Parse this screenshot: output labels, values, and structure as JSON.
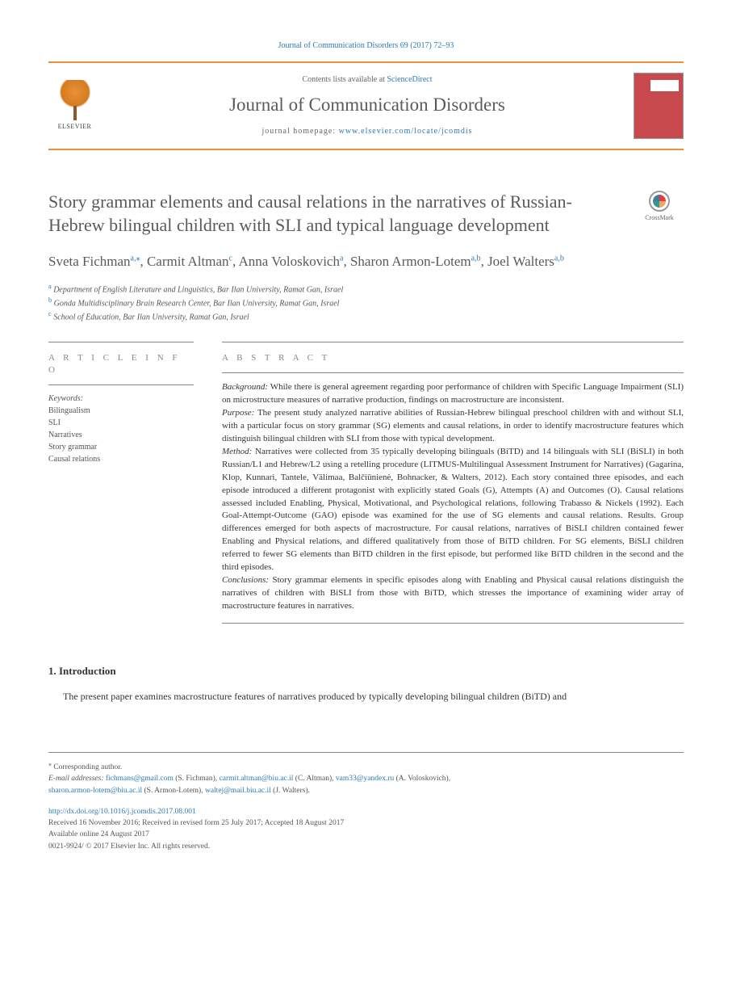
{
  "header": {
    "citation": "Journal of Communication Disorders 69 (2017) 72–93",
    "contents_prefix": "Contents lists available at ",
    "contents_link": "ScienceDirect",
    "journal_name": "Journal of Communication Disorders",
    "homepage_prefix": "journal homepage: ",
    "homepage_url": "www.elsevier.com/locate/jcomdis",
    "publisher_logo_text": "ELSEVIER"
  },
  "crossmark_label": "CrossMark",
  "title": "Story grammar elements and causal relations in the narratives of Russian-Hebrew bilingual children with SLI and typical language development",
  "authors_html": "Sveta Fichman<sup class='aff-marker'>a,</sup><sup class='aff-marker'>⁎</sup>, Carmit Altman<sup class='aff-marker'>c</sup>, Anna Voloskovich<sup class='aff-marker'>a</sup>, Sharon Armon-Lotem<sup class='aff-marker'>a,b</sup>, Joel Walters<sup class='aff-marker'>a,b</sup>",
  "affiliations": {
    "a": "Department of English Literature and Linguistics, Bar Ilan University, Ramat Gan, Israel",
    "b": "Gonda Multidisciplinary Brain Research Center, Bar Ilan University, Ramat Gan, Israel",
    "c": "School of Education, Bar Ilan University, Ramat Gan, Israel"
  },
  "article_info": {
    "heading": "A R T I C L E  I N F O",
    "keywords_label": "Keywords:",
    "keywords": [
      "Bilingualism",
      "SLI",
      "Narratives",
      "Story grammar",
      "Causal relations"
    ]
  },
  "abstract": {
    "heading": "A B S T R A C T",
    "sections": [
      {
        "label": "Background:",
        "text": " While there is general agreement regarding poor performance of children with Specific Language Impairment (SLI) on microstructure measures of narrative production, findings on macrostructure are inconsistent."
      },
      {
        "label": "Purpose:",
        "text": " The present study analyzed narrative abilities of Russian-Hebrew bilingual preschool children with and without SLI, with a particular focus on story grammar (SG) elements and causal relations, in order to identify macrostructure features which distinguish bilingual children with SLI from those with typical development."
      },
      {
        "label": "Method:",
        "text": " Narratives were collected from 35 typically developing bilinguals (BiTD) and 14 bilinguals with SLI (BiSLI) in both Russian/L1 and Hebrew/L2 using a retelling procedure (LITMUS-Multilingual Assessment Instrument for Narratives) (Gagarina, Klop, Kunnari, Tantele, Välimaa, Balčiūnienė, Bohnacker, & Walters, 2012). Each story contained three episodes, and each episode introduced a different protagonist with explicitly stated Goals (G), Attempts (A) and Outcomes (O). Causal relations assessed included Enabling, Physical, Motivational, and Psychological relations, following Trabasso & Nickels (1992). Each Goal-Attempt-Outcome (GAO) episode was examined for the use of SG elements and causal relations. Results. Group differences emerged for both aspects of macrostructure. For causal relations, narratives of BiSLI children contained fewer Enabling and Physical relations, and differed qualitatively from those of BiTD children. For SG elements, BiSLI children referred to fewer SG elements than BiTD children in the first episode, but performed like BiTD children in the second and the third episodes."
      },
      {
        "label": "Conclusions:",
        "text": " Story grammar elements in specific episodes along with Enabling and Physical causal relations distinguish the narratives of children with BiSLI from those with BiTD, which stresses the importance of examining wider array of macrostructure features in narratives."
      }
    ]
  },
  "intro": {
    "heading": "1. Introduction",
    "text": "The present paper examines macrostructure features of narratives produced by typically developing bilingual children (BiTD) and"
  },
  "footer": {
    "corresponding": "Corresponding author.",
    "email_label": "E-mail addresses:",
    "emails": [
      {
        "addr": "fichmans@gmail.com",
        "name": "(S. Fichman),"
      },
      {
        "addr": "carmit.altman@biu.ac.il",
        "name": "(C. Altman),"
      },
      {
        "addr": "vam33@yandex.ru",
        "name": "(A. Voloskovich),"
      },
      {
        "addr": "sharon.armon-lotem@biu.ac.il",
        "name": "(S. Armon-Lotem),"
      },
      {
        "addr": "waltej@mail.biu.ac.il",
        "name": "(J. Walters)."
      }
    ],
    "doi": "http://dx.doi.org/10.1016/j.jcomdis.2017.08.001",
    "received": "Received 16 November 2016; Received in revised form 25 July 2017; Accepted 18 August 2017",
    "available": "Available online 24 August 2017",
    "copyright": "0021-9924/ © 2017 Elsevier Inc. All rights reserved."
  },
  "colors": {
    "accent_orange": "#eb9137",
    "link_blue": "#2b7ab4",
    "heading_gray": "#5a5a5a",
    "cover_red": "#c8494d"
  }
}
